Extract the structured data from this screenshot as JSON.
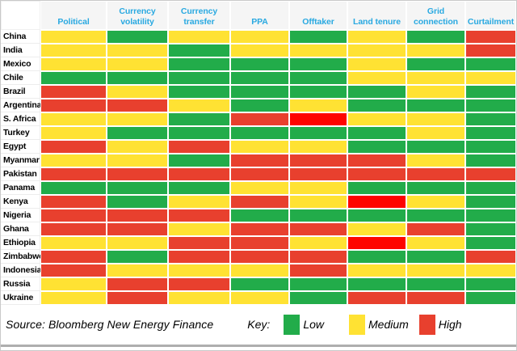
{
  "chart_data": {
    "type": "heatmap",
    "title": "",
    "columns": [
      "Political",
      "Currency volatility",
      "Currency transfer",
      "PPA",
      "Offtaker",
      "Land tenure",
      "Grid connection",
      "Curtailment"
    ],
    "rows": [
      "China",
      "India",
      "Mexico",
      "Chile",
      "Brazil",
      "Argentina",
      "S. Africa",
      "Turkey",
      "Egypt",
      "Myanmar",
      "Pakistan",
      "Panama",
      "Kenya",
      "Nigeria",
      "Ghana",
      "Ethiopia",
      "Zimbabwe",
      "Indonesia",
      "Russia",
      "Ukraine"
    ],
    "cells": [
      [
        "medium",
        "low",
        "medium",
        "medium",
        "low",
        "medium",
        "low",
        "high"
      ],
      [
        "medium",
        "medium",
        "low",
        "medium",
        "medium",
        "medium",
        "medium",
        "high"
      ],
      [
        "medium",
        "medium",
        "low",
        "low",
        "low",
        "medium",
        "low",
        "low"
      ],
      [
        "low",
        "low",
        "low",
        "low",
        "low",
        "medium",
        "medium",
        "medium"
      ],
      [
        "high",
        "medium",
        "low",
        "low",
        "low",
        "low",
        "medium",
        "low"
      ],
      [
        "high",
        "high",
        "medium",
        "low",
        "medium",
        "low",
        "low",
        "low"
      ],
      [
        "medium",
        "medium",
        "low",
        "high",
        "high2",
        "medium",
        "medium",
        "low"
      ],
      [
        "medium",
        "low",
        "low",
        "low",
        "low",
        "low",
        "medium",
        "low"
      ],
      [
        "high",
        "medium",
        "high",
        "medium",
        "medium",
        "low",
        "low",
        "low"
      ],
      [
        "medium",
        "medium",
        "low",
        "high",
        "high",
        "high",
        "medium",
        "low"
      ],
      [
        "high",
        "high",
        "high",
        "high",
        "high",
        "high",
        "high",
        "high"
      ],
      [
        "low",
        "low",
        "low",
        "medium",
        "medium",
        "low",
        "low",
        "low"
      ],
      [
        "high",
        "low",
        "medium",
        "high",
        "medium",
        "high2",
        "medium",
        "low"
      ],
      [
        "high",
        "high",
        "high",
        "low",
        "low",
        "low",
        "low",
        "low"
      ],
      [
        "high",
        "high",
        "medium",
        "high",
        "high",
        "medium",
        "high",
        "low"
      ],
      [
        "medium",
        "medium",
        "high",
        "high",
        "medium",
        "high2",
        "medium",
        "low"
      ],
      [
        "high",
        "low",
        "high",
        "high",
        "high",
        "low",
        "low",
        "high"
      ],
      [
        "high",
        "medium",
        "medium",
        "medium",
        "high",
        "medium",
        "medium",
        "medium"
      ],
      [
        "medium",
        "high",
        "high",
        "low",
        "low",
        "low",
        "low",
        "low"
      ],
      [
        "medium",
        "high",
        "medium",
        "medium",
        "low",
        "high",
        "high",
        "low"
      ]
    ],
    "legend_position": "bottom",
    "level_labels": {
      "low": "Low",
      "medium": "Medium",
      "high": "High"
    }
  },
  "footer": {
    "source": "Source: Bloomberg New Energy Finance",
    "key_label": "Key:",
    "legend_items": [
      {
        "label": "Low",
        "level": "low"
      },
      {
        "label": "Medium",
        "level": "medium"
      },
      {
        "label": "High",
        "level": "high"
      }
    ]
  },
  "colors": {
    "low": "#22AC4A",
    "medium": "#FFE233",
    "high": "#E8402E",
    "high2": "#FE0400",
    "header_text": "#29A9E1"
  }
}
